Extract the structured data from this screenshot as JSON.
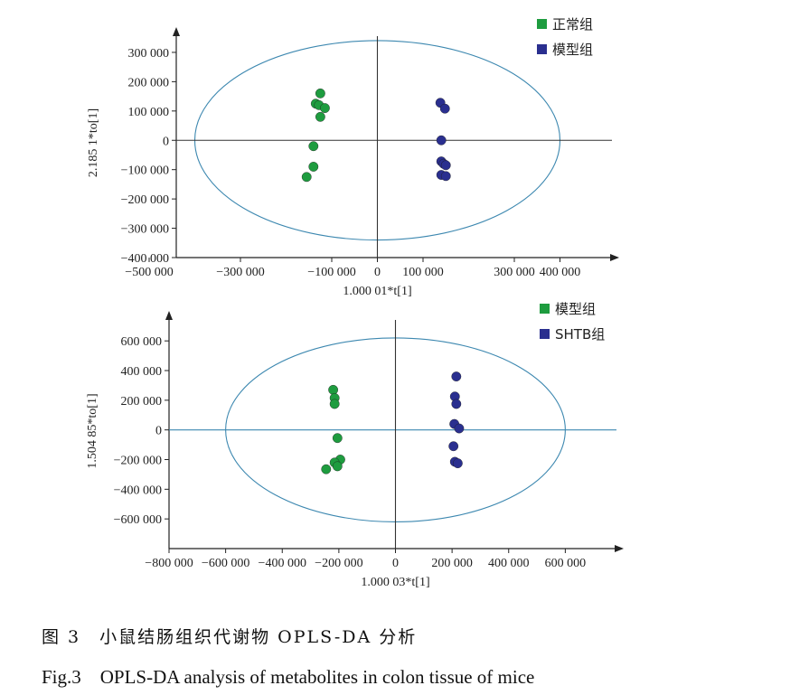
{
  "chart_data": [
    {
      "type": "scatter",
      "title": "",
      "xlabel": "1.000 01*t[1]",
      "ylabel": "2.185 1*to[1]",
      "xlim": [
        -500000,
        500000
      ],
      "ylim": [
        -400000,
        380000
      ],
      "x_ticks": [
        -500000,
        -300000,
        -100000,
        0,
        100000,
        300000,
        400000
      ],
      "x_tick_labels": [
        "−500 000",
        "−300 000",
        "−100 000",
        "0",
        "100 000",
        "300 000",
        "400 000"
      ],
      "y_ticks": [
        300000,
        200000,
        100000,
        0,
        -100000,
        -200000,
        -300000,
        -400000
      ],
      "y_tick_labels": [
        "300 000",
        "200 000",
        "100 000",
        "0",
        "−100 000",
        "−200 000",
        "−300 000",
        "−400 000"
      ],
      "ellipse": {
        "rx": 400000,
        "ry": 340000
      },
      "legend_position": "top-right",
      "series": [
        {
          "name": "正常组",
          "color": "#1e9c3f",
          "points": [
            [
              -125000,
              160000
            ],
            [
              -135000,
              125000
            ],
            [
              -128000,
              120000
            ],
            [
              -115000,
              110000
            ],
            [
              -125000,
              80000
            ],
            [
              -140000,
              -20000
            ],
            [
              -140000,
              -90000
            ],
            [
              -155000,
              -125000
            ]
          ]
        },
        {
          "name": "模型组",
          "color": "#2a2f8f",
          "points": [
            [
              138000,
              128000
            ],
            [
              148000,
              108000
            ],
            [
              140000,
              0
            ],
            [
              140000,
              -72000
            ],
            [
              145000,
              -80000
            ],
            [
              150000,
              -85000
            ],
            [
              140000,
              -118000
            ],
            [
              150000,
              -122000
            ]
          ]
        }
      ]
    },
    {
      "type": "scatter",
      "title": "",
      "xlabel": "1.000 03*t[1]",
      "ylabel": "1.504 85*to[1]",
      "xlim": [
        -800000,
        800000
      ],
      "ylim": [
        -800000,
        790000
      ],
      "x_ticks": [
        -800000,
        -600000,
        -400000,
        -200000,
        0,
        200000,
        400000,
        600000
      ],
      "x_tick_labels": [
        "−800 000",
        "−600 000",
        "−400 000",
        "−200 000",
        "0",
        "200 000",
        "400 000",
        "600 000"
      ],
      "y_ticks": [
        600000,
        400000,
        200000,
        0,
        -200000,
        -400000,
        -600000
      ],
      "y_tick_labels": [
        "600 000",
        "400 000",
        "200 000",
        "0",
        "−200 000",
        "−400 000",
        "−600 000"
      ],
      "ellipse": {
        "rx": 600000,
        "ry": 620000
      },
      "legend_position": "top-right",
      "series": [
        {
          "name": "模型组",
          "color": "#1e9c3f",
          "points": [
            [
              -220000,
              270000
            ],
            [
              -215000,
              215000
            ],
            [
              -215000,
              175000
            ],
            [
              -205000,
              -55000
            ],
            [
              -195000,
              -200000
            ],
            [
              -215000,
              -220000
            ],
            [
              -205000,
              -245000
            ],
            [
              -245000,
              -265000
            ]
          ]
        },
        {
          "name": "SHTB组",
          "color": "#2a2f8f",
          "points": [
            [
              215000,
              360000
            ],
            [
              210000,
              225000
            ],
            [
              215000,
              175000
            ],
            [
              208000,
              40000
            ],
            [
              225000,
              10000
            ],
            [
              205000,
              -110000
            ],
            [
              210000,
              -215000
            ],
            [
              220000,
              -225000
            ]
          ]
        }
      ]
    }
  ],
  "caption": {
    "zh": "图 3　小鼠结肠组织代谢物 OPLS-DA 分析",
    "en": "Fig.3　OPLS-DA analysis of metabolites in colon tissue of mice"
  }
}
